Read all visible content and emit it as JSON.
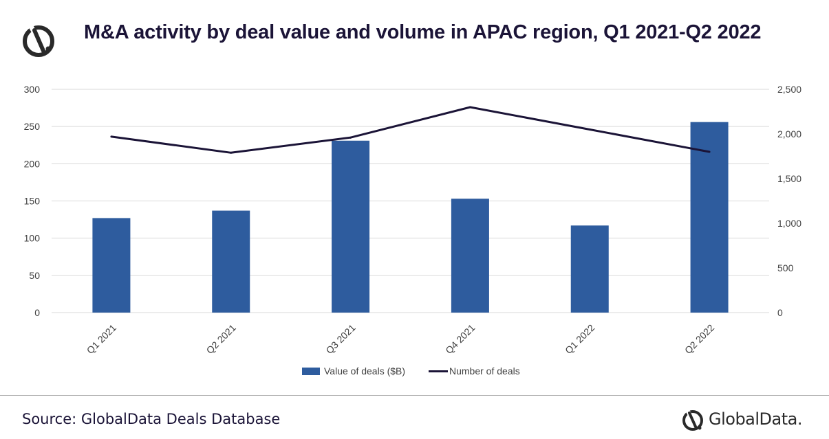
{
  "header": {
    "title": "M&A activity by deal value and volume in APAC region, Q1 2021-Q2 2022"
  },
  "footer": {
    "source": "Source: GlobalData Deals Database",
    "brand": "GlobalData."
  },
  "colors": {
    "bar": "#2e5c9e",
    "line": "#1b1437",
    "grid": "#d9d9d9",
    "text": "#404040",
    "title": "#1b1437"
  },
  "icons": {
    "header_logo": "globaldata-logo-icon",
    "footer_logo": "globaldata-logo-icon"
  },
  "chart_data": {
    "type": "bar",
    "categories": [
      "Q1 2021",
      "Q2 2021",
      "Q3 2021",
      "Q4 2021",
      "Q1 2022",
      "Q2 2022"
    ],
    "series": [
      {
        "name": "Value of deals ($B)",
        "type": "bar",
        "axis": "left",
        "values": [
          127,
          137,
          231,
          153,
          117,
          256
        ]
      },
      {
        "name": "Number of deals",
        "type": "line",
        "axis": "right",
        "values": [
          1970,
          1790,
          1960,
          2300,
          2050,
          1800
        ]
      }
    ],
    "y_left": {
      "min": 0,
      "max": 300,
      "ticks": [
        0,
        50,
        100,
        150,
        200,
        250,
        300
      ],
      "tick_labels": [
        "0",
        "50",
        "100",
        "150",
        "200",
        "250",
        "300"
      ]
    },
    "y_right": {
      "min": 0,
      "max": 2500,
      "ticks": [
        0,
        500,
        1000,
        1500,
        2000,
        2500
      ],
      "tick_labels": [
        "0",
        "500",
        "1,000",
        "1,500",
        "2,000",
        "2,500"
      ]
    },
    "grid": true,
    "legend_position": "bottom"
  }
}
